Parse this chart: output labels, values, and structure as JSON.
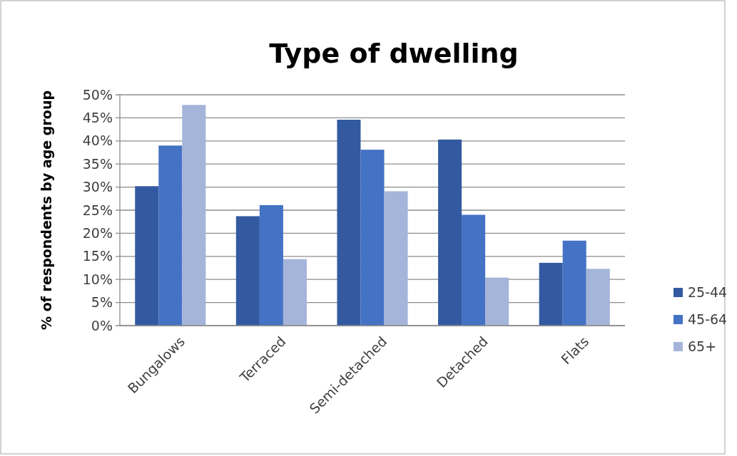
{
  "chart_data": {
    "type": "bar",
    "title": "Type of dwelling",
    "ylabel": "% of respondents by age group",
    "categories": [
      "Bungalows",
      "Terraced",
      "Semi-detached",
      "Detached",
      "Flats"
    ],
    "series": [
      {
        "name": "25-44",
        "color": "#335aa1",
        "values": [
          30.2,
          23.7,
          44.6,
          40.3,
          13.6
        ]
      },
      {
        "name": "45-64",
        "color": "#4472c4",
        "values": [
          39,
          26.1,
          38.1,
          24,
          18.4
        ]
      },
      {
        "name": "65+",
        "color": "#a5b4d9",
        "values": [
          47.8,
          14.4,
          29.1,
          10.4,
          12.3
        ]
      }
    ],
    "ylim": [
      0,
      50
    ],
    "yticks": [
      {
        "value": 0,
        "label": "0%"
      },
      {
        "value": 5,
        "label": "5%"
      },
      {
        "value": 10,
        "label": "10%"
      },
      {
        "value": 15,
        "label": "15%"
      },
      {
        "value": 20,
        "label": "20%"
      },
      {
        "value": 25,
        "label": "25%"
      },
      {
        "value": 30,
        "label": "30%"
      },
      {
        "value": 35,
        "label": "35%"
      },
      {
        "value": 40,
        "label": "40%"
      },
      {
        "value": 45,
        "label": "45%"
      },
      {
        "value": 50,
        "label": "50%"
      }
    ],
    "grid": "y",
    "legend": "right"
  }
}
